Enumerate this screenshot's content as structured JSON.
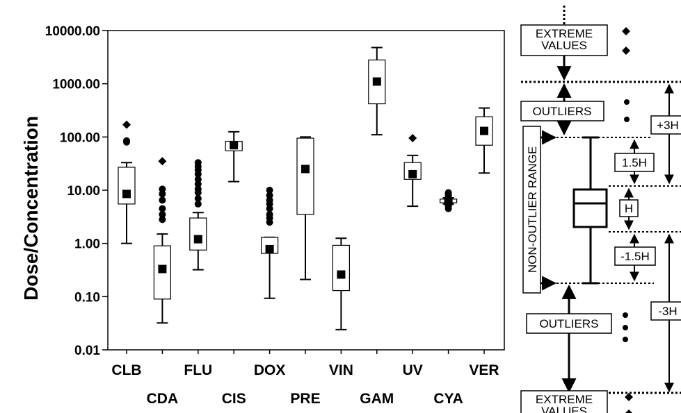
{
  "chart_data": {
    "type": "box",
    "ylabel": "Dose/Concentration",
    "yscale": "log",
    "ylim": [
      0.01,
      10000
    ],
    "yticks": [
      "0.01",
      "0.10",
      "1.00",
      "10.00",
      "100.00",
      "1000.00",
      "10000.00"
    ],
    "categories": [
      "CLB",
      "CDA",
      "FLU",
      "CIS",
      "DOX",
      "PRE",
      "VIN",
      "GAM",
      "UV",
      "CYA",
      "VER"
    ],
    "boxes": [
      {
        "category": "CLB",
        "min": 1.0,
        "q1": 5.5,
        "median": 8.5,
        "q3": 27,
        "max": 33,
        "outliers": [
          80,
          85
        ],
        "extremes": [
          170
        ]
      },
      {
        "category": "CDA",
        "min": 0.032,
        "q1": 0.09,
        "median": 0.33,
        "q3": 0.9,
        "max": 1.5,
        "outliers": [
          2.8,
          3.5,
          4.5,
          6.5,
          8.5,
          10.5
        ],
        "extremes": [
          35
        ]
      },
      {
        "category": "FLU",
        "min": 0.32,
        "q1": 0.75,
        "median": 1.2,
        "q3": 3.0,
        "max": 3.8,
        "outliers": [
          5.5,
          7,
          9,
          10.5,
          13,
          16,
          20,
          24,
          28,
          33
        ],
        "extremes": []
      },
      {
        "category": "CIS",
        "min": 14.5,
        "q1": 55,
        "median": 70,
        "q3": 83,
        "max": 125,
        "outliers": [],
        "extremes": []
      },
      {
        "category": "DOX",
        "min": 0.093,
        "q1": 0.65,
        "median": 0.78,
        "q3": 1.3,
        "max": 1.3,
        "outliers": [
          2.5,
          3,
          3.5,
          4.5,
          5.5,
          6.5,
          8,
          10
        ],
        "extremes": []
      },
      {
        "category": "PRE",
        "min": 0.21,
        "q1": 3.5,
        "median": 25,
        "q3": 95,
        "max": 100,
        "outliers": [],
        "extremes": []
      },
      {
        "category": "VIN",
        "min": 0.024,
        "q1": 0.13,
        "median": 0.26,
        "q3": 0.92,
        "max": 1.25,
        "outliers": [],
        "extremes": []
      },
      {
        "category": "GAM",
        "min": 110,
        "q1": 420,
        "median": 1100,
        "q3": 2800,
        "max": 4800,
        "outliers": [],
        "extremes": []
      },
      {
        "category": "UV",
        "min": 5.0,
        "q1": 16,
        "median": 20,
        "q3": 33,
        "max": 45,
        "outliers": [],
        "extremes": [
          95
        ]
      },
      {
        "category": "CYA",
        "min": 5.5,
        "q1": 5.8,
        "median": 6.2,
        "q3": 6.8,
        "max": 7.2,
        "outliers": [
          4.5,
          5,
          7.5,
          8,
          8.5,
          9
        ],
        "extremes": []
      },
      {
        "category": "VER",
        "min": 21,
        "q1": 70,
        "median": 130,
        "q3": 240,
        "max": 350,
        "outliers": [],
        "extremes": []
      }
    ],
    "grid": false,
    "legend_position": "right"
  },
  "legend": {
    "extreme_values": "EXTREME\nVALUES",
    "outliers": "OUTLIERS",
    "non_outlier_range": "NON-OUTLIER RANGE",
    "plus_3h": "+3H",
    "plus_1_5h": "1.5H",
    "h": "H",
    "minus_1_5h": "-1.5H",
    "minus_3h": "-3H"
  }
}
